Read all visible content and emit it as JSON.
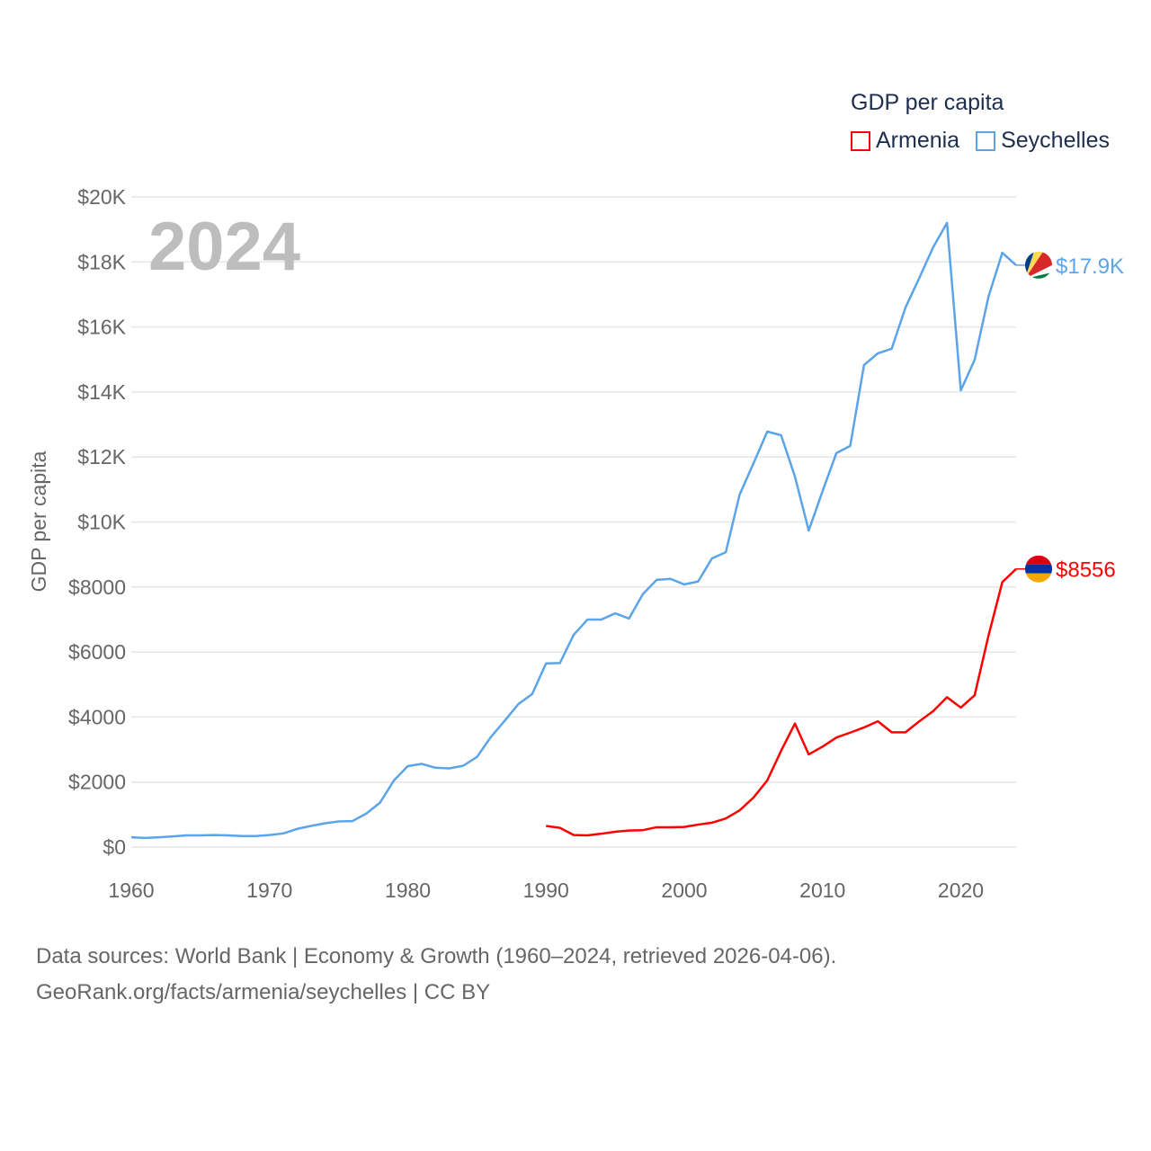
{
  "chart_data": {
    "type": "line",
    "title": "GDP per capita",
    "ylabel": "GDP per capita",
    "xlabel": "",
    "year_label": "2024",
    "xlim": [
      1960,
      2024
    ],
    "ylim": [
      0,
      20000
    ],
    "grid": true,
    "legend_position": "top-right",
    "x_ticks": [
      "1960",
      "1970",
      "1980",
      "1990",
      "2000",
      "2010",
      "2020"
    ],
    "y_ticks": [
      "$0",
      "$2000",
      "$4000",
      "$6000",
      "$8000",
      "$10K",
      "$12K",
      "$14K",
      "$16K",
      "$18K",
      "$20K"
    ],
    "series": [
      {
        "name": "Armenia",
        "color": "#ff0000",
        "end_label": "$8556",
        "start_year": 1990,
        "values": [
          650,
          590,
          370,
          360,
          410,
          470,
          510,
          520,
          610,
          610,
          620,
          690,
          750,
          880,
          1130,
          1520,
          2050,
          2960,
          3800,
          2850,
          3090,
          3370,
          3520,
          3680,
          3870,
          3530,
          3530,
          3870,
          4180,
          4610,
          4290,
          4670,
          6500,
          8150,
          8556
        ]
      },
      {
        "name": "Seychelles",
        "color": "#5ba4ea",
        "end_label": "$17.9K",
        "start_year": 1960,
        "values": [
          300,
          280,
          300,
          330,
          360,
          360,
          370,
          360,
          340,
          340,
          370,
          420,
          560,
          650,
          730,
          790,
          800,
          1030,
          1370,
          2050,
          2490,
          2560,
          2440,
          2420,
          2500,
          2770,
          3380,
          3880,
          4400,
          4710,
          5650,
          5660,
          6530,
          7000,
          7000,
          7190,
          7030,
          7780,
          8220,
          8250,
          8080,
          8170,
          8880,
          9070,
          10840,
          11800,
          12780,
          12670,
          11400,
          9740,
          10950,
          12120,
          12340,
          14830,
          15190,
          15330,
          16600,
          17510,
          18450,
          19200,
          14050,
          14990,
          16930,
          18280,
          17900
        ]
      }
    ]
  },
  "footer": {
    "line1": "Data sources: World Bank | Economy & Growth (1960–2024, retrieved 2026-04-06).",
    "line2": "GeoRank.org/facts/armenia/seychelles | CC BY"
  }
}
